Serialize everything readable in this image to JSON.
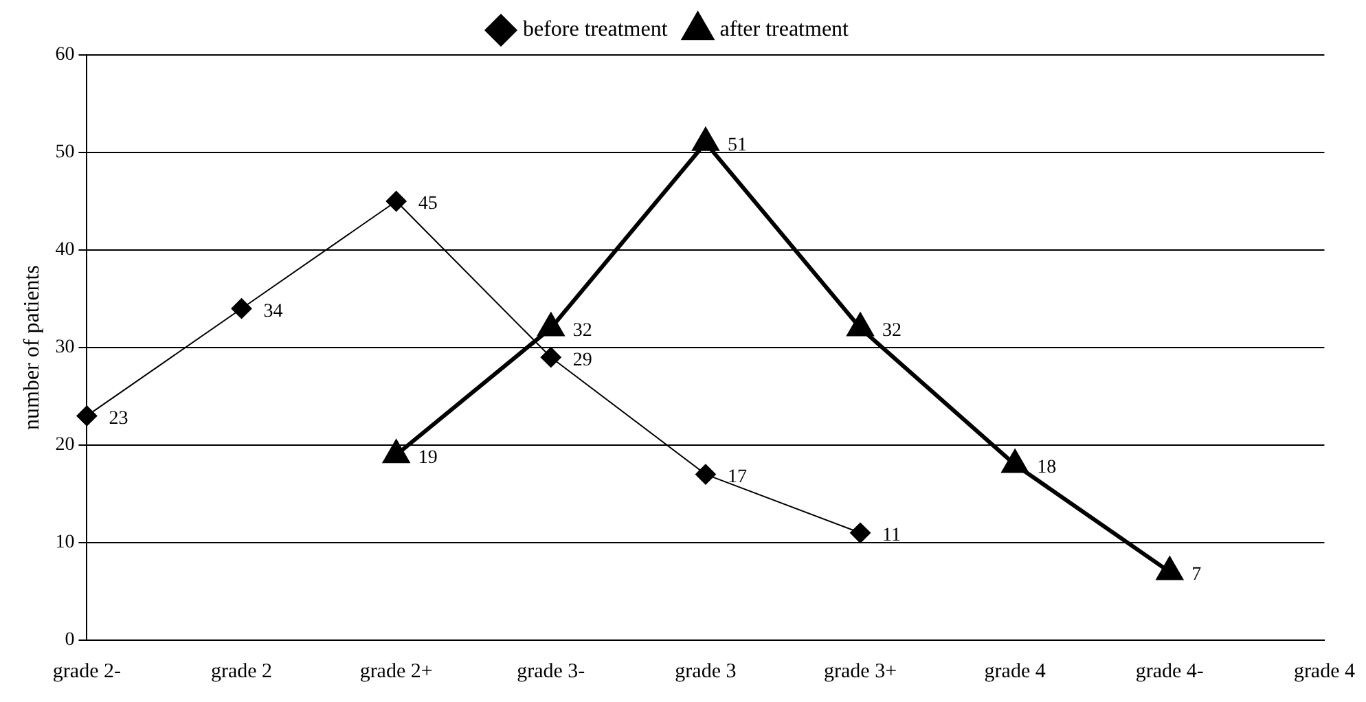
{
  "chart_data": {
    "type": "line",
    "ylabel": "number of patients",
    "categories": [
      "grade 2-",
      "grade 2",
      "grade 2+",
      "grade 3-",
      "grade 3",
      "grade 3+",
      "grade 4",
      "grade 4-",
      "grade 4"
    ],
    "series": [
      {
        "name": "before treatment",
        "color": "#000000",
        "marker": "diamond",
        "values": [
          23,
          34,
          45,
          29,
          17,
          11,
          null,
          null,
          null
        ]
      },
      {
        "name": "after treatment",
        "color": "#000000",
        "marker": "triangle",
        "values": [
          null,
          null,
          19,
          32,
          51,
          32,
          18,
          7,
          null
        ]
      }
    ],
    "ylim": [
      0,
      60
    ],
    "yticks": [
      0,
      10,
      20,
      30,
      40,
      50,
      60
    ],
    "grid": "y",
    "legend": "top",
    "data_labels": true,
    "line_style": "solid"
  }
}
